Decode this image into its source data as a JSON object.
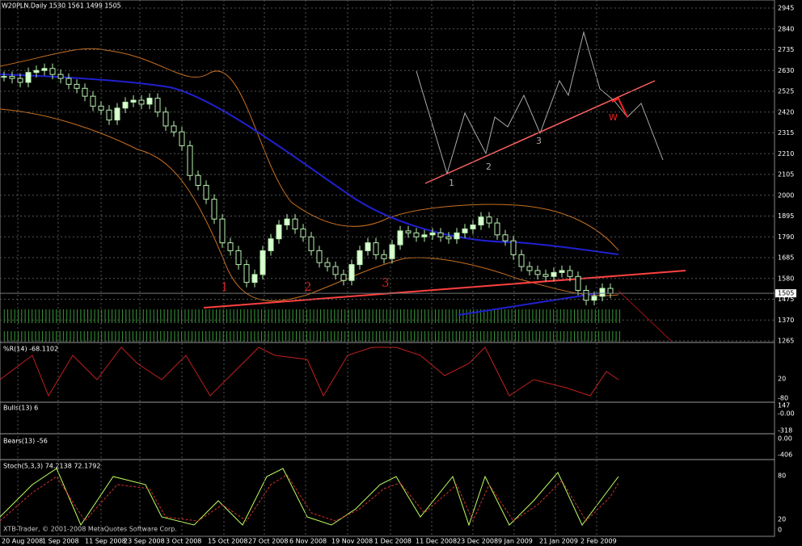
{
  "header": {
    "title": "W20PLN,Daily  1530 1561 1499 1505"
  },
  "price_axis": {
    "ylim": [
      1265,
      2945
    ],
    "ticks": [
      2945,
      2840,
      2735,
      2630,
      2525,
      2420,
      2315,
      2210,
      2105,
      2000,
      1895,
      1790,
      1685,
      1580,
      1475,
      1370,
      1265
    ],
    "current": 1505
  },
  "price": {
    "closes": [
      2600,
      2590,
      2570,
      2620,
      2630,
      2640,
      2610,
      2590,
      2560,
      2540,
      2500,
      2450,
      2430,
      2380,
      2440,
      2470,
      2480,
      2460,
      2490,
      2420,
      2350,
      2320,
      2250,
      2100,
      2050,
      1980,
      1880,
      1760,
      1720,
      1650,
      1560,
      1600,
      1720,
      1780,
      1850,
      1880,
      1830,
      1790,
      1720,
      1660,
      1640,
      1600,
      1570,
      1650,
      1720,
      1760,
      1700,
      1680,
      1750,
      1820,
      1810,
      1790,
      1800,
      1810,
      1790,
      1780,
      1810,
      1830,
      1850,
      1890,
      1860,
      1800,
      1770,
      1700,
      1640,
      1620,
      1600,
      1590,
      1610,
      1620,
      1590,
      1520,
      1470,
      1490,
      1530,
      1505
    ]
  },
  "wave_labels": {
    "red": [
      "1",
      "2",
      "3"
    ],
    "grey": [
      "1",
      "2",
      "3"
    ],
    "w": "W"
  },
  "panels": [
    {
      "label": "%R(14) -68.1102",
      "axis_labels": [
        "20",
        "-80"
      ]
    },
    {
      "label": "Bulls(13) 6",
      "axis_labels": [
        "147",
        "-0.00",
        "-318"
      ]
    },
    {
      "label": "Bears(13) -56",
      "axis_labels": [
        "0.00",
        "-406"
      ]
    },
    {
      "label": "Stoch(5,3,3) 74.2138 72.1792",
      "axis_labels": [
        "80",
        "20",
        "0"
      ]
    }
  ],
  "dates": [
    "20 Aug 2008",
    "1 Sep 2008",
    "11 Sep 2008",
    "23 Sep 2008",
    "3 Oct 2008",
    "15 Oct 2008",
    "27 Oct 2008",
    "6 Nov 2008",
    "19 Nov 2008",
    "1 Dec 2008",
    "11 Dec 2008",
    "23 Dec 2008",
    "9 Jan 2009",
    "21 Jan 2009",
    "2 Feb 2009"
  ],
  "footer": "XTB-Trader, © 2001-2008 MetaQuotes Software Corp."
}
